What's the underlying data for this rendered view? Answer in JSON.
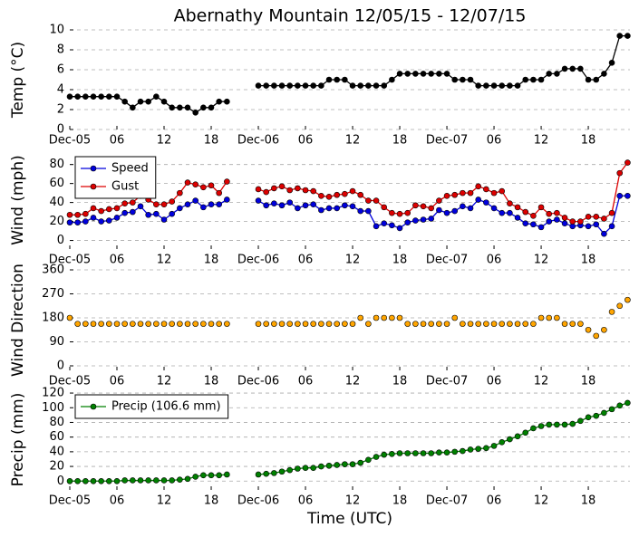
{
  "chart_data": [
    {
      "type": "line",
      "title": "Abernathy Mountain 12/05/15 - 12/07/15",
      "ylabel": "Temp (°C)",
      "x": [
        0,
        1,
        2,
        3,
        4,
        5,
        6,
        7,
        8,
        9,
        10,
        11,
        12,
        13,
        14,
        15,
        16,
        17,
        18,
        19,
        20,
        21,
        22,
        23,
        24,
        25,
        26,
        27,
        28,
        29,
        30,
        31,
        32,
        33,
        34,
        35,
        36,
        37,
        38,
        39,
        40,
        41,
        42,
        43,
        44,
        45,
        46,
        47,
        48,
        49,
        50,
        51,
        52,
        53,
        54,
        55,
        56,
        57,
        58,
        59,
        60,
        61,
        62,
        63,
        64,
        65,
        66,
        67,
        68,
        69,
        70,
        71
      ],
      "values": [
        3.3,
        3.3,
        3.3,
        3.3,
        3.3,
        3.3,
        3.3,
        2.8,
        2.2,
        2.8,
        2.8,
        3.3,
        2.8,
        2.2,
        2.2,
        2.2,
        1.7,
        2.2,
        2.2,
        2.8,
        2.8,
        null,
        null,
        null,
        4.4,
        4.4,
        4.4,
        4.4,
        4.4,
        4.4,
        4.4,
        4.4,
        4.4,
        5.0,
        5.0,
        5.0,
        4.4,
        4.4,
        4.4,
        4.4,
        4.4,
        5.0,
        5.6,
        5.6,
        5.6,
        5.6,
        5.6,
        5.6,
        5.6,
        5.0,
        5.0,
        5.0,
        4.4,
        4.4,
        4.4,
        4.4,
        4.4,
        4.4,
        5.0,
        5.0,
        5.0,
        5.6,
        5.6,
        6.1,
        6.1,
        6.1,
        5.0,
        5.0,
        5.6,
        6.7,
        9.4,
        9.4
      ],
      "color": "#000000",
      "line": true,
      "xlim": [
        0,
        71.3
      ],
      "xticks": [
        {
          "value": 0,
          "label": "Dec-05"
        },
        {
          "value": 6,
          "label": "06"
        },
        12,
        18,
        {
          "value": 24,
          "label": "Dec-06"
        },
        {
          "value": 30,
          "label": "06"
        },
        {
          "value": 36,
          "label": "12"
        },
        {
          "value": 42,
          "label": "18"
        },
        {
          "value": 48,
          "label": "Dec-07"
        },
        {
          "value": 54,
          "label": "06"
        },
        {
          "value": 60,
          "label": "12"
        },
        {
          "value": 66,
          "label": "18"
        }
      ],
      "ylim": [
        0,
        10
      ],
      "yticks": [
        0,
        2,
        4,
        6,
        8,
        10
      ],
      "grid": true
    },
    {
      "type": "line",
      "ylabel": "Wind (mph)",
      "x": [
        0,
        1,
        2,
        3,
        4,
        5,
        6,
        7,
        8,
        9,
        10,
        11,
        12,
        13,
        14,
        15,
        16,
        17,
        18,
        19,
        20,
        21,
        22,
        23,
        24,
        25,
        26,
        27,
        28,
        29,
        30,
        31,
        32,
        33,
        34,
        35,
        36,
        37,
        38,
        39,
        40,
        41,
        42,
        43,
        44,
        45,
        46,
        47,
        48,
        49,
        50,
        51,
        52,
        53,
        54,
        55,
        56,
        57,
        58,
        59,
        60,
        61,
        62,
        63,
        64,
        65,
        66,
        67,
        68,
        69,
        70,
        71
      ],
      "series": [
        {
          "name": "Speed",
          "color": "#0000dd",
          "line": true,
          "values": [
            19,
            19,
            20,
            24,
            20,
            21,
            24,
            29,
            30,
            36,
            27,
            28,
            22,
            28,
            34,
            38,
            42,
            35,
            38,
            38,
            43,
            null,
            null,
            null,
            42,
            37,
            39,
            37,
            40,
            34,
            37,
            38,
            32,
            34,
            34,
            37,
            36,
            31,
            31,
            15,
            18,
            16,
            13,
            19,
            21,
            22,
            23,
            32,
            29,
            31,
            36,
            34,
            43,
            40,
            34,
            29,
            29,
            24,
            18,
            17,
            14,
            20,
            22,
            18,
            15,
            16,
            15,
            17,
            7,
            15,
            47,
            47
          ]
        },
        {
          "name": "Gust",
          "color": "#dd0000",
          "line": true,
          "values": [
            27,
            27,
            28,
            34,
            31,
            33,
            34,
            39,
            40,
            47,
            43,
            38,
            38,
            41,
            50,
            61,
            59,
            56,
            58,
            50,
            62,
            null,
            null,
            null,
            54,
            51,
            55,
            57,
            53,
            55,
            53,
            52,
            47,
            46,
            48,
            49,
            52,
            48,
            42,
            42,
            35,
            29,
            28,
            29,
            37,
            36,
            34,
            42,
            47,
            48,
            50,
            50,
            57,
            54,
            50,
            52,
            39,
            35,
            30,
            26,
            35,
            28,
            29,
            24,
            20,
            20,
            25,
            25,
            23,
            29,
            71,
            82
          ]
        }
      ],
      "legend": "upper left",
      "xlim": [
        0,
        71.3
      ],
      "xticks": [
        {
          "value": 0,
          "label": "Dec-05"
        },
        {
          "value": 6,
          "label": "06"
        },
        12,
        18,
        {
          "value": 24,
          "label": "Dec-06"
        },
        {
          "value": 30,
          "label": "06"
        },
        {
          "value": 36,
          "label": "12"
        },
        {
          "value": 42,
          "label": "18"
        },
        {
          "value": 48,
          "label": "Dec-07"
        },
        {
          "value": 54,
          "label": "06"
        },
        {
          "value": 60,
          "label": "12"
        },
        {
          "value": 66,
          "label": "18"
        }
      ],
      "ylim": [
        -9,
        94
      ],
      "yticks": [
        0,
        20,
        40,
        60,
        80
      ],
      "grid": true
    },
    {
      "type": "line",
      "ylabel": "Wind Direction",
      "x": [
        0,
        1,
        2,
        3,
        4,
        5,
        6,
        7,
        8,
        9,
        10,
        11,
        12,
        13,
        14,
        15,
        16,
        17,
        18,
        19,
        20,
        21,
        22,
        23,
        24,
        25,
        26,
        27,
        28,
        29,
        30,
        31,
        32,
        33,
        34,
        35,
        36,
        37,
        38,
        39,
        40,
        41,
        42,
        43,
        44,
        45,
        46,
        47,
        48,
        49,
        50,
        51,
        52,
        53,
        54,
        55,
        56,
        57,
        58,
        59,
        60,
        61,
        62,
        63,
        64,
        65,
        66,
        67,
        68,
        69,
        70,
        71
      ],
      "values": [
        180,
        157.5,
        157.5,
        157.5,
        157.5,
        157.5,
        157.5,
        157.5,
        157.5,
        157.5,
        157.5,
        157.5,
        157.5,
        157.5,
        157.5,
        157.5,
        157.5,
        157.5,
        157.5,
        157.5,
        157.5,
        null,
        null,
        null,
        157.5,
        157.5,
        157.5,
        157.5,
        157.5,
        157.5,
        157.5,
        157.5,
        157.5,
        157.5,
        157.5,
        157.5,
        157.5,
        180,
        157.5,
        180,
        180,
        180,
        180,
        157.5,
        157.5,
        157.5,
        157.5,
        157.5,
        157.5,
        180,
        157.5,
        157.5,
        157.5,
        157.5,
        157.5,
        157.5,
        157.5,
        157.5,
        157.5,
        157.5,
        180,
        180,
        180,
        157.5,
        157.5,
        157.5,
        135,
        112.5,
        135,
        202.5,
        225,
        247.5
      ],
      "color": "#ffa500",
      "line": false,
      "xlim": [
        0,
        71.3
      ],
      "xticks": [
        {
          "value": 0,
          "label": "Dec-05"
        },
        {
          "value": 6,
          "label": "06"
        },
        12,
        18,
        {
          "value": 24,
          "label": "Dec-06"
        },
        {
          "value": 30,
          "label": "06"
        },
        {
          "value": 36,
          "label": "12"
        },
        {
          "value": 42,
          "label": "18"
        },
        {
          "value": 48,
          "label": "Dec-07"
        },
        {
          "value": 54,
          "label": "06"
        },
        {
          "value": 60,
          "label": "12"
        },
        {
          "value": 66,
          "label": "18"
        }
      ],
      "ylim": [
        -17,
        360
      ],
      "yticks": [
        0,
        90,
        180,
        270,
        360
      ],
      "grid": true
    },
    {
      "type": "line",
      "ylabel": "Precip (mm)",
      "xlabel": "Time (UTC)",
      "x": [
        0,
        1,
        2,
        3,
        4,
        5,
        6,
        7,
        8,
        9,
        10,
        11,
        12,
        13,
        14,
        15,
        16,
        17,
        18,
        19,
        20,
        21,
        22,
        23,
        24,
        25,
        26,
        27,
        28,
        29,
        30,
        31,
        32,
        33,
        34,
        35,
        36,
        37,
        38,
        39,
        40,
        41,
        42,
        43,
        44,
        45,
        46,
        47,
        48,
        49,
        50,
        51,
        52,
        53,
        54,
        55,
        56,
        57,
        58,
        59,
        60,
        61,
        62,
        63,
        64,
        65,
        66,
        67,
        68,
        69,
        70,
        71
      ],
      "series": [
        {
          "name": "Precip (106.6 mm)",
          "color": "#008000",
          "line": true,
          "values": [
            0,
            0,
            0,
            0,
            0,
            0,
            0,
            1,
            1,
            1,
            1,
            1,
            1,
            1,
            2,
            3,
            6,
            8,
            8,
            8,
            9,
            null,
            null,
            null,
            9,
            10,
            11,
            13,
            15,
            17,
            18,
            18,
            20,
            21,
            22,
            23,
            23,
            25,
            29,
            33,
            36,
            37,
            38,
            38,
            38,
            38,
            38,
            39,
            39,
            40,
            41,
            43,
            44,
            45,
            48,
            53,
            57,
            61,
            66,
            72,
            75,
            77,
            77,
            77,
            78,
            82,
            87,
            89,
            93,
            98,
            103,
            106.6
          ]
        }
      ],
      "legend": "upper left",
      "xlim": [
        0,
        71.3
      ],
      "xticks": [
        {
          "value": 0,
          "label": "Dec-05"
        },
        {
          "value": 6,
          "label": "06"
        },
        12,
        18,
        {
          "value": 24,
          "label": "Dec-06"
        },
        {
          "value": 30,
          "label": "06"
        },
        {
          "value": 36,
          "label": "12"
        },
        {
          "value": 42,
          "label": "18"
        },
        {
          "value": 48,
          "label": "Dec-07"
        },
        {
          "value": 54,
          "label": "06"
        },
        {
          "value": 60,
          "label": "12"
        },
        {
          "value": 66,
          "label": "18"
        }
      ],
      "ylim": [
        -12,
        125
      ],
      "yticks": [
        0,
        20,
        40,
        60,
        80,
        100,
        120
      ],
      "grid": true
    }
  ]
}
